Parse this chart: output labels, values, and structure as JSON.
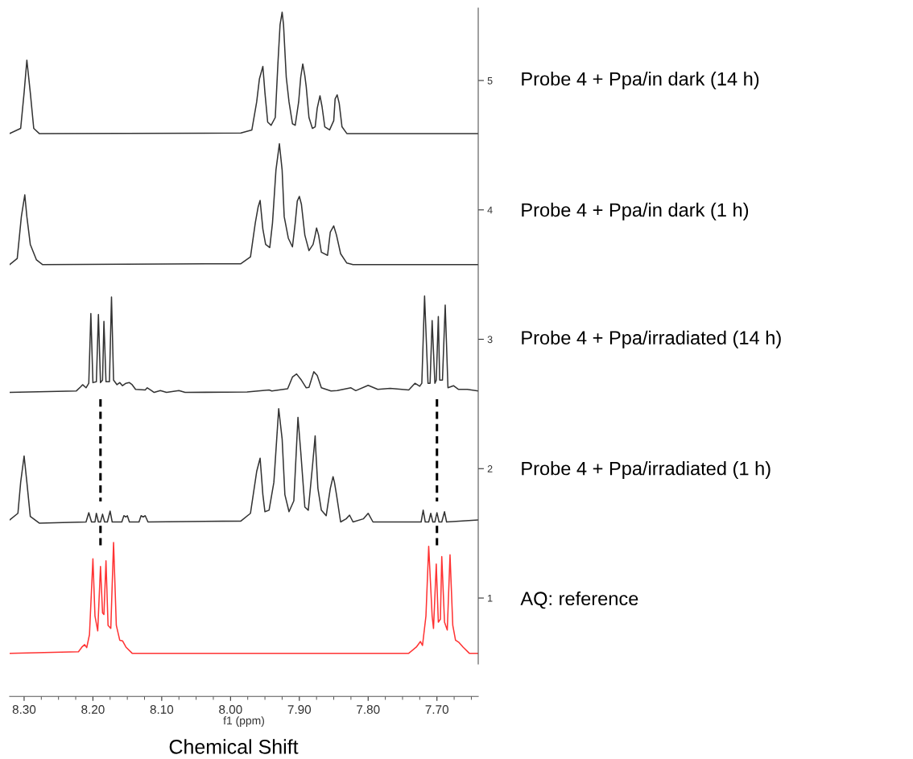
{
  "chart_data": {
    "type": "line",
    "xlabel": "f1 (ppm)",
    "annotations": [
      "Chemical Shift"
    ],
    "xlim": [
      8.321,
      7.64
    ],
    "ylim": [
      0.49,
      5.56
    ],
    "xticks": [
      {
        "value": 8.3,
        "label": "8.30"
      },
      {
        "value": 8.2,
        "label": "8.20"
      },
      {
        "value": 8.1,
        "label": "8.10"
      },
      {
        "value": 8.0,
        "label": "8.00"
      },
      {
        "value": 7.9,
        "label": "7.90"
      },
      {
        "value": 7.8,
        "label": "7.80"
      },
      {
        "value": 7.7,
        "label": "7.70"
      }
    ],
    "yticks": [
      1,
      2,
      3,
      4,
      5
    ],
    "grid": false,
    "legend": false,
    "marker": "none",
    "series": [
      {
        "name": "Probe 4 + Ppa/in dark (14 h)",
        "color": "#333333",
        "line_style": "solid",
        "x": [
          8.321,
          8.305,
          8.3,
          8.296,
          8.291,
          8.286,
          8.278,
          7.985,
          7.969,
          7.962,
          7.958,
          7.953,
          7.95,
          7.946,
          7.941,
          7.935,
          7.931,
          7.928,
          7.925,
          7.923,
          7.919,
          7.915,
          7.91,
          7.906,
          7.901,
          7.898,
          7.895,
          7.892,
          7.89,
          7.886,
          7.881,
          7.877,
          7.874,
          7.87,
          7.867,
          7.863,
          7.856,
          7.85,
          7.848,
          7.845,
          7.842,
          7.838,
          7.831,
          7.64
        ],
        "values": [
          4.59,
          4.63,
          4.906,
          5.157,
          4.906,
          4.63,
          4.59,
          4.594,
          4.618,
          4.834,
          5.013,
          5.109,
          4.906,
          4.678,
          4.654,
          4.714,
          5.145,
          5.432,
          5.528,
          5.432,
          5.025,
          4.834,
          4.666,
          4.654,
          4.834,
          5.025,
          5.128,
          5.037,
          4.953,
          4.714,
          4.63,
          4.642,
          4.786,
          4.882,
          4.798,
          4.642,
          4.618,
          4.69,
          4.858,
          4.889,
          4.822,
          4.642,
          4.59,
          4.59
        ]
      },
      {
        "name": "Probe 4 + Ppa/in dark (1 h)",
        "color": "#333333",
        "line_style": "solid",
        "x": [
          8.321,
          8.31,
          8.304,
          8.299,
          8.296,
          8.291,
          8.282,
          8.273,
          7.985,
          7.971,
          7.964,
          7.96,
          7.957,
          7.953,
          7.949,
          7.943,
          7.939,
          7.934,
          7.929,
          7.925,
          7.922,
          7.916,
          7.91,
          7.906,
          7.903,
          7.9,
          7.897,
          7.892,
          7.886,
          7.88,
          7.877,
          7.875,
          7.872,
          7.868,
          7.859,
          7.855,
          7.85,
          7.846,
          7.84,
          7.831,
          7.822,
          7.64
        ],
        "values": [
          3.577,
          3.625,
          3.948,
          4.116,
          3.948,
          3.733,
          3.613,
          3.577,
          3.584,
          3.637,
          3.9,
          4.02,
          4.073,
          3.852,
          3.733,
          3.709,
          3.9,
          4.307,
          4.511,
          4.307,
          3.948,
          3.781,
          3.714,
          3.9,
          4.068,
          4.104,
          4.044,
          3.805,
          3.685,
          3.733,
          3.805,
          3.86,
          3.805,
          3.673,
          3.649,
          3.829,
          3.876,
          3.805,
          3.661,
          3.589,
          3.577,
          3.577
        ]
      },
      {
        "name": "Probe 4 + Ppa/irradiated (14 h)",
        "color": "#333333",
        "line_style": "solid",
        "x": [
          8.321,
          8.224,
          8.218,
          8.215,
          8.21,
          8.206,
          8.203,
          8.2,
          8.195,
          8.192,
          8.189,
          8.186,
          8.184,
          8.181,
          8.176,
          8.173,
          8.17,
          8.165,
          8.161,
          8.157,
          8.152,
          8.147,
          8.143,
          8.138,
          8.124,
          8.121,
          8.116,
          8.111,
          8.102,
          8.093,
          8.075,
          8.066,
          7.976,
          7.944,
          7.94,
          7.917,
          7.91,
          7.904,
          7.897,
          7.89,
          7.886,
          7.879,
          7.874,
          7.868,
          7.854,
          7.845,
          7.825,
          7.818,
          7.8,
          7.786,
          7.768,
          7.741,
          7.732,
          7.725,
          7.722,
          7.718,
          7.713,
          7.71,
          7.707,
          7.703,
          7.701,
          7.698,
          7.696,
          7.692,
          7.688,
          7.684,
          7.676,
          7.669,
          7.656,
          7.64
        ],
        "values": [
          2.589,
          2.601,
          2.632,
          2.649,
          2.625,
          2.66,
          3.199,
          2.665,
          2.672,
          3.192,
          2.665,
          2.684,
          3.139,
          2.672,
          2.672,
          3.326,
          2.684,
          2.649,
          2.665,
          2.641,
          2.66,
          2.665,
          2.649,
          2.613,
          2.608,
          2.625,
          2.608,
          2.589,
          2.603,
          2.589,
          2.603,
          2.589,
          2.593,
          2.608,
          2.601,
          2.617,
          2.708,
          2.732,
          2.684,
          2.625,
          2.629,
          2.749,
          2.72,
          2.625,
          2.601,
          2.603,
          2.625,
          2.603,
          2.644,
          2.613,
          2.62,
          2.608,
          2.66,
          2.637,
          2.66,
          3.335,
          2.66,
          2.66,
          3.144,
          2.66,
          2.684,
          3.175,
          2.684,
          2.684,
          3.264,
          2.625,
          2.641,
          2.613,
          2.613,
          2.601
        ]
      },
      {
        "name": "Probe 4 + Ppa/irradiated (1 h)",
        "color": "#333333",
        "line_style": "solid",
        "x": [
          8.321,
          8.309,
          8.305,
          8.3,
          8.296,
          8.291,
          8.278,
          8.21,
          8.206,
          8.202,
          8.197,
          8.195,
          8.192,
          8.189,
          8.186,
          8.183,
          8.179,
          8.175,
          8.172,
          8.158,
          8.155,
          8.152,
          8.15,
          8.147,
          8.133,
          8.13,
          8.127,
          8.124,
          8.12,
          7.985,
          7.971,
          7.962,
          7.957,
          7.953,
          7.95,
          7.944,
          7.937,
          7.93,
          7.925,
          7.921,
          7.915,
          7.908,
          7.902,
          7.898,
          7.892,
          7.887,
          7.881,
          7.877,
          7.876,
          7.873,
          7.868,
          7.861,
          7.855,
          7.851,
          7.849,
          7.846,
          7.84,
          7.832,
          7.827,
          7.822,
          7.807,
          7.8,
          7.793,
          7.723,
          7.72,
          7.717,
          7.712,
          7.709,
          7.706,
          7.703,
          7.7,
          7.697,
          7.693,
          7.689,
          7.686,
          7.64
        ],
        "values": [
          1.603,
          1.655,
          1.895,
          2.098,
          1.895,
          1.631,
          1.579,
          1.588,
          1.66,
          1.588,
          1.588,
          1.655,
          1.588,
          1.588,
          1.648,
          1.588,
          1.588,
          1.672,
          1.588,
          1.588,
          1.636,
          1.627,
          1.636,
          1.588,
          1.588,
          1.636,
          1.627,
          1.636,
          1.588,
          1.595,
          1.655,
          1.978,
          2.081,
          1.799,
          1.667,
          1.679,
          1.895,
          2.464,
          2.23,
          1.799,
          1.667,
          1.751,
          2.397,
          2.134,
          1.703,
          1.679,
          2.014,
          2.254,
          2.134,
          1.847,
          1.679,
          1.636,
          1.847,
          1.938,
          1.895,
          1.799,
          1.588,
          1.612,
          1.641,
          1.588,
          1.612,
          1.655,
          1.588,
          1.588,
          1.679,
          1.588,
          1.588,
          1.655,
          1.588,
          1.588,
          1.66,
          1.588,
          1.588,
          1.667,
          1.588,
          1.603
        ]
      },
      {
        "name": "AQ: reference",
        "color": "#ff3333",
        "line_style": "solid",
        "x": [
          8.321,
          8.221,
          8.216,
          8.212,
          8.209,
          8.205,
          8.2,
          8.197,
          8.193,
          8.189,
          8.186,
          8.184,
          8.181,
          8.178,
          8.174,
          8.17,
          8.166,
          8.161,
          8.157,
          8.152,
          8.143,
          7.741,
          7.73,
          7.724,
          7.721,
          7.716,
          7.712,
          7.707,
          7.705,
          7.701,
          7.698,
          7.695,
          7.693,
          7.689,
          7.685,
          7.681,
          7.677,
          7.673,
          7.668,
          7.662,
          7.653,
          7.64
        ],
        "values": [
          0.573,
          0.585,
          0.621,
          0.64,
          0.617,
          0.717,
          1.303,
          0.861,
          0.746,
          1.244,
          0.885,
          0.873,
          1.287,
          0.789,
          0.765,
          1.43,
          0.789,
          0.674,
          0.669,
          0.621,
          0.573,
          0.573,
          0.621,
          0.664,
          0.633,
          0.861,
          1.399,
          0.861,
          0.765,
          1.263,
          0.813,
          0.837,
          1.32,
          0.813,
          0.753,
          1.335,
          0.789,
          0.674,
          0.657,
          0.621,
          0.573,
          0.573
        ]
      },
      {
        "color": "#000000",
        "line_style": "dashed",
        "x": [
          8.189,
          8.189
        ],
        "values": [
          2.536,
          1.746
        ]
      },
      {
        "color": "#000000",
        "line_style": "dashed",
        "x": [
          8.189,
          8.189
        ],
        "values": [
          1.559,
          1.387
        ]
      },
      {
        "color": "#000000",
        "line_style": "dashed",
        "x": [
          7.7,
          7.7
        ],
        "values": [
          2.536,
          1.746
        ]
      },
      {
        "color": "#000000",
        "line_style": "dashed",
        "x": [
          7.7,
          7.7
        ],
        "values": [
          1.559,
          1.387
        ]
      }
    ]
  }
}
